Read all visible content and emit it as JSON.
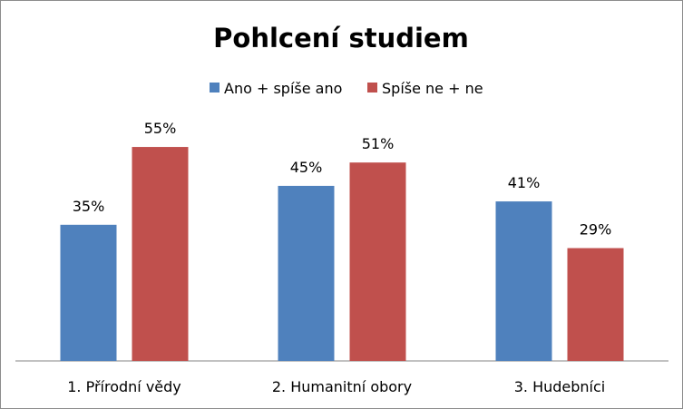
{
  "chart_data": {
    "type": "bar",
    "title": "Pohlcení studiem",
    "categories": [
      "1. Přírodní vědy",
      "2. Humanitní obory",
      "3. Hudebníci"
    ],
    "series": [
      {
        "name": "Ano + spíše ano",
        "values": [
          35,
          45,
          41
        ],
        "labels": [
          "35%",
          "45%",
          "41%"
        ],
        "color": "#4f81bd"
      },
      {
        "name": "Spíše ne + ne",
        "values": [
          55,
          51,
          29
        ],
        "labels": [
          "55%",
          "51%",
          "29%"
        ],
        "color": "#c0504d"
      }
    ],
    "ylim": [
      0,
      60
    ],
    "unit": "%",
    "legend_position": "top",
    "grid": false
  }
}
